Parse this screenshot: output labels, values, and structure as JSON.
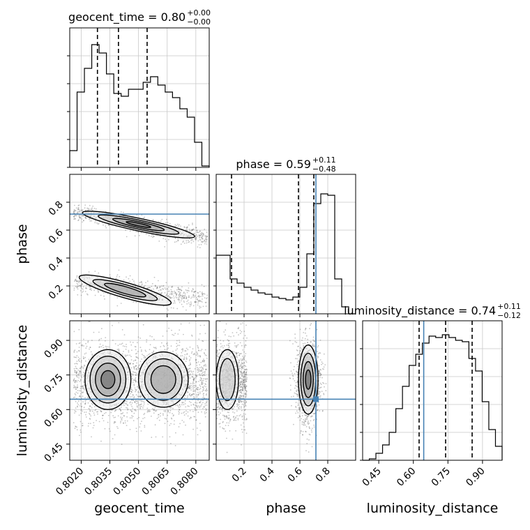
{
  "chart_data": {
    "type": "corner",
    "parameters": [
      {
        "name": "geocent_time",
        "axis_label": "geocent_time",
        "range": [
          0.8014,
          0.8087
        ],
        "ticks": [
          0.802,
          0.8035,
          0.805,
          0.8065,
          0.808
        ],
        "tick_labels": [
          "0.8020",
          "0.8035",
          "0.8050",
          "0.8065",
          "0.8080"
        ],
        "title": {
          "text": "geocent_time = 0.80",
          "plus": "+0.00",
          "minus": "−0.00"
        },
        "quantiles": [
          0.80285,
          0.80395,
          0.80545
        ],
        "truth": null,
        "histogram": [
          0.12,
          0.54,
          0.71,
          0.88,
          0.82,
          0.67,
          0.53,
          0.51,
          0.56,
          0.56,
          0.61,
          0.65,
          0.59,
          0.54,
          0.5,
          0.42,
          0.36,
          0.18,
          0.01
        ]
      },
      {
        "name": "phase",
        "axis_label": "phase",
        "range": [
          0.0,
          1.0
        ],
        "ticks": [
          0.2,
          0.4,
          0.6,
          0.8
        ],
        "tick_labels": [
          "0.2",
          "0.4",
          "0.6",
          "0.8"
        ],
        "title": {
          "text": "phase = 0.59",
          "plus": "+0.11",
          "minus": "−0.48"
        },
        "quantiles": [
          0.11,
          0.59,
          0.7
        ],
        "truth": 0.715,
        "histogram": [
          0.42,
          0.42,
          0.25,
          0.22,
          0.19,
          0.17,
          0.15,
          0.14,
          0.12,
          0.11,
          0.1,
          0.12,
          0.19,
          0.43,
          0.79,
          0.86,
          0.85,
          0.25,
          0.05,
          0.0
        ]
      },
      {
        "name": "luminosity_distance",
        "axis_label": "luminosity_distance",
        "range": [
          0.38,
          0.985
        ],
        "ticks": [
          0.45,
          0.6,
          0.75,
          0.9
        ],
        "tick_labels": [
          "0.45",
          "0.60",
          "0.75",
          "0.90"
        ],
        "title": {
          "text": "luminosity_distance = 0.74",
          "plus": "+0.11",
          "minus": "−0.12"
        },
        "quantiles": [
          0.625,
          0.74,
          0.855
        ],
        "truth": 0.645,
        "histogram": [
          0.0,
          0.01,
          0.05,
          0.11,
          0.2,
          0.37,
          0.53,
          0.68,
          0.76,
          0.84,
          0.89,
          0.88,
          0.9,
          0.88,
          0.86,
          0.85,
          0.73,
          0.64,
          0.42,
          0.22,
          0.1
        ]
      }
    ],
    "colors": {
      "truth": "#4682b4",
      "line": "#000000",
      "grid": "#c8c8c8"
    },
    "grid": true
  }
}
